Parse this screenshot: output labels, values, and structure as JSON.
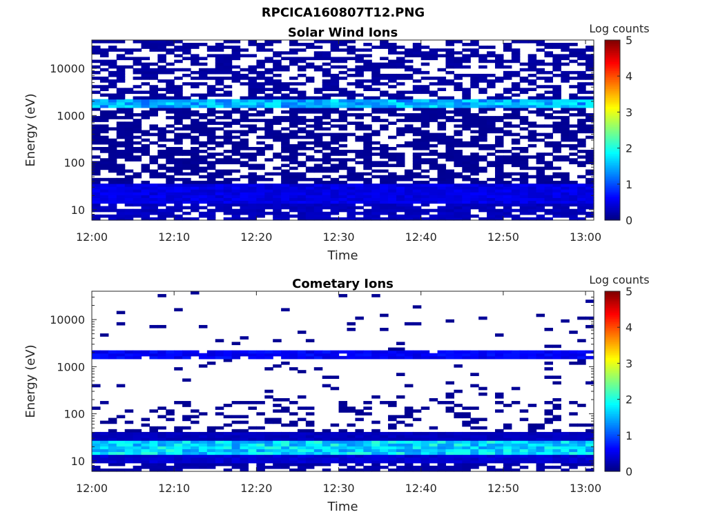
{
  "figure_title": "RPCICA160807T12.PNG",
  "colors": {
    "colormap": "jet",
    "missing": "#ffffff"
  },
  "chart_data": [
    {
      "type": "heatmap",
      "title": "Solar Wind Ions",
      "xlabel": "Time",
      "ylabel": "Energy (eV)",
      "x_range": [
        "12:00",
        "13:01"
      ],
      "x_ticks": [
        "12:00",
        "12:10",
        "12:20",
        "12:30",
        "12:40",
        "12:50",
        "13:00"
      ],
      "y_scale": "log",
      "y_range": [
        6,
        40000
      ],
      "y_ticks": [
        10,
        100,
        1000,
        10000
      ],
      "y_tick_labels": [
        "10",
        "100",
        "1000",
        "10000"
      ],
      "colorbar": {
        "label": "Log counts",
        "min": 0,
        "max": 5,
        "ticks": [
          "0",
          "1",
          "2",
          "3",
          "4",
          "5"
        ]
      },
      "layers": [
        {
          "energy_range": [
            6,
            13
          ],
          "time_fraction_with_counts": 0.8,
          "log_counts": 0.3
        },
        {
          "energy_range": [
            13,
            35
          ],
          "time_fraction_with_counts": 1.0,
          "log_counts": 0.5
        },
        {
          "energy_range": [
            35,
            1500
          ],
          "time_fraction_with_counts": 0.6,
          "log_counts": 0.1
        },
        {
          "energy_range": [
            1500,
            2200
          ],
          "time_fraction_with_counts": 1.0,
          "log_counts": 1.5
        },
        {
          "energy_range": [
            2200,
            40000
          ],
          "time_fraction_with_counts": 0.55,
          "log_counts": 0.15
        }
      ]
    },
    {
      "type": "heatmap",
      "title": "Cometary Ions",
      "xlabel": "Time",
      "ylabel": "Energy (eV)",
      "x_range": [
        "12:00",
        "13:01"
      ],
      "x_ticks": [
        "12:00",
        "12:10",
        "12:20",
        "12:30",
        "12:40",
        "12:50",
        "13:00"
      ],
      "y_scale": "log",
      "y_range": [
        6,
        40000
      ],
      "y_ticks": [
        10,
        100,
        1000,
        10000
      ],
      "y_tick_labels": [
        "10",
        "100",
        "1000",
        "10000"
      ],
      "colorbar": {
        "label": "Log counts",
        "min": 0,
        "max": 5,
        "ticks": [
          "0",
          "1",
          "2",
          "3",
          "4",
          "5"
        ]
      },
      "layers": [
        {
          "energy_range": [
            6,
            9
          ],
          "time_fraction_with_counts": 0.7,
          "log_counts": 0.2
        },
        {
          "energy_range": [
            9,
            14
          ],
          "time_fraction_with_counts": 1.0,
          "log_counts": 0.4
        },
        {
          "energy_range": [
            14,
            28
          ],
          "time_fraction_with_counts": 1.0,
          "log_counts": 1.7
        },
        {
          "energy_range": [
            28,
            40
          ],
          "time_fraction_with_counts": 1.0,
          "log_counts": 0.3
        },
        {
          "energy_range": [
            40,
            200
          ],
          "time_fraction_with_counts": 0.25,
          "log_counts": 0.1
        },
        {
          "energy_range": [
            200,
            1500
          ],
          "time_fraction_with_counts": 0.05,
          "log_counts": 0.1
        },
        {
          "energy_range": [
            1500,
            2100
          ],
          "time_fraction_with_counts": 0.9,
          "log_counts": 0.6
        },
        {
          "energy_range": [
            2100,
            40000
          ],
          "time_fraction_with_counts": 0.03,
          "log_counts": 0.1
        }
      ]
    }
  ]
}
